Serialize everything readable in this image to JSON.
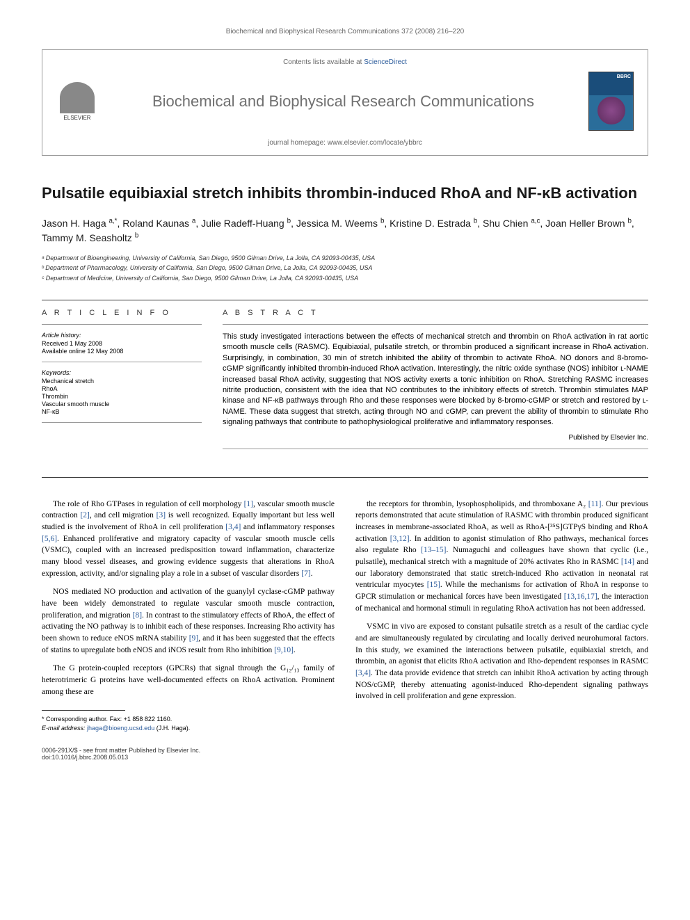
{
  "journal_ref": "Biochemical and Biophysical Research Communications 372 (2008) 216–220",
  "header": {
    "contents_available": "Contents lists available at ",
    "sciencedirect": "ScienceDirect",
    "journal_name": "Biochemical and Biophysical Research Communications",
    "homepage_label": "journal homepage: ",
    "homepage_url": "www.elsevier.com/locate/ybbrc",
    "elsevier_label": "ELSEVIER",
    "cover_bbrc": "BBRC"
  },
  "title": "Pulsatile equibiaxial stretch inhibits thrombin-induced RhoA and NF-κB activation",
  "authors_html": "Jason H. Haga <sup>a,*</sup>, Roland Kaunas <sup>a</sup>, Julie Radeff-Huang <sup>b</sup>, Jessica M. Weems <sup>b</sup>, Kristine D. Estrada <sup>b</sup>, Shu Chien <sup>a,c</sup>, Joan Heller Brown <sup>b</sup>, Tammy M. Seasholtz <sup>b</sup>",
  "affiliations": [
    "ᵃ Department of Bioengineering, University of California, San Diego, 9500 Gilman Drive, La Jolla, CA 92093-00435, USA",
    "ᵇ Department of Pharmacology, University of California, San Diego, 9500 Gilman Drive, La Jolla, CA 92093-00435, USA",
    "ᶜ Department of Medicine, University of California, San Diego, 9500 Gilman Drive, La Jolla, CA 92093-00435, USA"
  ],
  "article_info": {
    "heading": "A R T I C L E   I N F O",
    "history_heading": "Article history:",
    "received": "Received 1 May 2008",
    "available": "Available online 12 May 2008",
    "keywords_heading": "Keywords:",
    "keywords": [
      "Mechanical stretch",
      "RhoA",
      "Thrombin",
      "Vascular smooth muscle",
      "NF-κB"
    ]
  },
  "abstract": {
    "heading": "A B S T R A C T",
    "text": "This study investigated interactions between the effects of mechanical stretch and thrombin on RhoA activation in rat aortic smooth muscle cells (RASMC). Equibiaxial, pulsatile stretch, or thrombin produced a significant increase in RhoA activation. Surprisingly, in combination, 30 min of stretch inhibited the ability of thrombin to activate RhoA. NO donors and 8-bromo-cGMP significantly inhibited thrombin-induced RhoA activation. Interestingly, the nitric oxide synthase (NOS) inhibitor ʟ-NAME increased basal RhoA activity, suggesting that NOS activity exerts a tonic inhibition on RhoA. Stretching RASMC increases nitrite production, consistent with the idea that NO contributes to the inhibitory effects of stretch. Thrombin stimulates MAP kinase and NF-κB pathways through Rho and these responses were blocked by 8-bromo-cGMP or stretch and restored by ʟ-NAME. These data suggest that stretch, acting through NO and cGMP, can prevent the ability of thrombin to stimulate Rho signaling pathways that contribute to pathophysiological proliferative and inflammatory responses.",
    "published_by": "Published by Elsevier Inc."
  },
  "body": {
    "col1_p1": "The role of Rho GTPases in regulation of cell morphology [1], vascular smooth muscle contraction [2], and cell migration [3] is well recognized. Equally important but less well studied is the involvement of RhoA in cell proliferation [3,4] and inflammatory responses [5,6]. Enhanced proliferative and migratory capacity of vascular smooth muscle cells (VSMC), coupled with an increased predisposition toward inflammation, characterize many blood vessel diseases, and growing evidence suggests that alterations in RhoA expression, activity, and/or signaling play a role in a subset of vascular disorders [7].",
    "col1_p2": "NOS mediated NO production and activation of the guanylyl cyclase-cGMP pathway have been widely demonstrated to regulate vascular smooth muscle contraction, proliferation, and migration [8]. In contrast to the stimulatory effects of RhoA, the effect of activating the NO pathway is to inhibit each of these responses. Increasing Rho activity has been shown to reduce eNOS mRNA stability [9], and it has been suggested that the effects of statins to upregulate both eNOS and iNOS result from Rho inhibition [9,10].",
    "col1_p3": "The G protein-coupled receptors (GPCRs) that signal through the G₁₂/₁₃ family of heterotrimeric G proteins have well-documented effects on RhoA activation. Prominent among these are",
    "col2_p1": "the receptors for thrombin, lysophospholipids, and thromboxane A₂ [11]. Our previous reports demonstrated that acute stimulation of RASMC with thrombin produced significant increases in membrane-associated RhoA, as well as RhoA-[³⁵S]GTPγS binding and RhoA activation [3,12]. In addition to agonist stimulation of Rho pathways, mechanical forces also regulate Rho [13–15]. Numaguchi and colleagues have shown that cyclic (i.e., pulsatile), mechanical stretch with a magnitude of 20% activates Rho in RASMC [14] and our laboratory demonstrated that static stretch-induced Rho activation in neonatal rat ventricular myocytes [15]. While the mechanisms for activation of RhoA in response to GPCR stimulation or mechanical forces have been investigated [13,16,17], the interaction of mechanical and hormonal stimuli in regulating RhoA activation has not been addressed.",
    "col2_p2": "VSMC in vivo are exposed to constant pulsatile stretch as a result of the cardiac cycle and are simultaneously regulated by circulating and locally derived neurohumoral factors. In this study, we examined the interactions between pulsatile, equibiaxial stretch, and thrombin, an agonist that elicits RhoA activation and Rho-dependent responses in RASMC [3,4]. The data provide evidence that stretch can inhibit RhoA activation by acting through NOS/cGMP, thereby attenuating agonist-induced Rho-dependent signaling pathways involved in cell proliferation and gene expression."
  },
  "footnote": {
    "corresponding": "* Corresponding author. Fax: +1 858 822 1160.",
    "email_label": "E-mail address: ",
    "email": "jhaga@bioeng.ucsd.edu",
    "email_suffix": " (J.H. Haga)."
  },
  "footer": {
    "issn": "0006-291X/$ - see front matter Published by Elsevier Inc.",
    "doi": "doi:10.1016/j.bbrc.2008.05.013"
  },
  "colors": {
    "link": "#2a5a9a",
    "text": "#000000",
    "gray_text": "#666666",
    "border": "#333333"
  }
}
